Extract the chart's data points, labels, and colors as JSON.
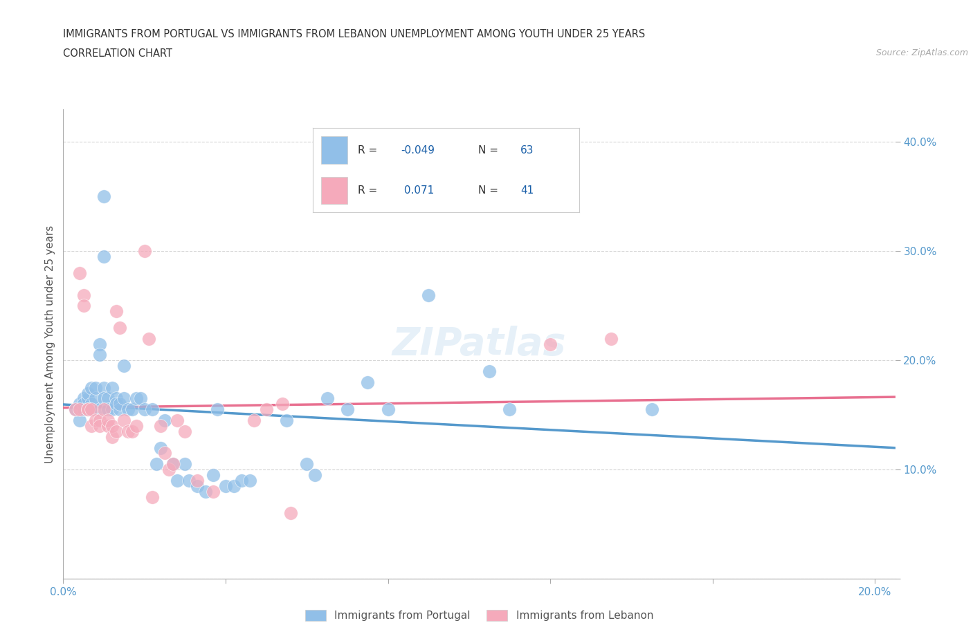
{
  "title_line1": "IMMIGRANTS FROM PORTUGAL VS IMMIGRANTS FROM LEBANON UNEMPLOYMENT AMONG YOUTH UNDER 25 YEARS",
  "title_line2": "CORRELATION CHART",
  "source_text": "Source: ZipAtlas.com",
  "ylabel": "Unemployment Among Youth under 25 years",
  "xlim": [
    0.0,
    0.205
  ],
  "ylim": [
    0.0,
    0.43
  ],
  "xticks": [
    0.0,
    0.04,
    0.08,
    0.12,
    0.16,
    0.2
  ],
  "xtick_labels": [
    "0.0%",
    "",
    "",
    "",
    "",
    "20.0%"
  ],
  "yticks": [
    0.0,
    0.1,
    0.2,
    0.3,
    0.4
  ],
  "ytick_labels_right": [
    "",
    "10.0%",
    "20.0%",
    "30.0%",
    "40.0%"
  ],
  "grid_color": "#cccccc",
  "background_color": "#ffffff",
  "portugal_color": "#91bfe8",
  "lebanon_color": "#f5aabb",
  "portugal_line_color": "#5599cc",
  "lebanon_line_color": "#e87090",
  "portugal_R": -0.049,
  "portugal_N": 63,
  "lebanon_R": 0.071,
  "lebanon_N": 41,
  "legend_text_color": "#1a5fa8",
  "legend_label_color": "#333333",
  "portugal_scatter": [
    [
      0.003,
      0.155
    ],
    [
      0.004,
      0.16
    ],
    [
      0.004,
      0.145
    ],
    [
      0.005,
      0.155
    ],
    [
      0.005,
      0.165
    ],
    [
      0.005,
      0.16
    ],
    [
      0.006,
      0.165
    ],
    [
      0.006,
      0.155
    ],
    [
      0.006,
      0.17
    ],
    [
      0.007,
      0.155
    ],
    [
      0.007,
      0.16
    ],
    [
      0.007,
      0.175
    ],
    [
      0.008,
      0.165
    ],
    [
      0.008,
      0.175
    ],
    [
      0.009,
      0.155
    ],
    [
      0.009,
      0.215
    ],
    [
      0.009,
      0.205
    ],
    [
      0.01,
      0.175
    ],
    [
      0.01,
      0.165
    ],
    [
      0.01,
      0.35
    ],
    [
      0.01,
      0.295
    ],
    [
      0.011,
      0.165
    ],
    [
      0.011,
      0.155
    ],
    [
      0.012,
      0.155
    ],
    [
      0.012,
      0.175
    ],
    [
      0.013,
      0.165
    ],
    [
      0.013,
      0.16
    ],
    [
      0.014,
      0.155
    ],
    [
      0.014,
      0.16
    ],
    [
      0.015,
      0.195
    ],
    [
      0.015,
      0.165
    ],
    [
      0.016,
      0.155
    ],
    [
      0.017,
      0.155
    ],
    [
      0.018,
      0.165
    ],
    [
      0.019,
      0.165
    ],
    [
      0.02,
      0.155
    ],
    [
      0.022,
      0.155
    ],
    [
      0.023,
      0.105
    ],
    [
      0.024,
      0.12
    ],
    [
      0.025,
      0.145
    ],
    [
      0.027,
      0.105
    ],
    [
      0.028,
      0.09
    ],
    [
      0.03,
      0.105
    ],
    [
      0.031,
      0.09
    ],
    [
      0.033,
      0.085
    ],
    [
      0.035,
      0.08
    ],
    [
      0.037,
      0.095
    ],
    [
      0.038,
      0.155
    ],
    [
      0.04,
      0.085
    ],
    [
      0.042,
      0.085
    ],
    [
      0.044,
      0.09
    ],
    [
      0.046,
      0.09
    ],
    [
      0.055,
      0.145
    ],
    [
      0.06,
      0.105
    ],
    [
      0.062,
      0.095
    ],
    [
      0.065,
      0.165
    ],
    [
      0.07,
      0.155
    ],
    [
      0.075,
      0.18
    ],
    [
      0.08,
      0.155
    ],
    [
      0.09,
      0.26
    ],
    [
      0.105,
      0.19
    ],
    [
      0.11,
      0.155
    ],
    [
      0.145,
      0.155
    ]
  ],
  "lebanon_scatter": [
    [
      0.003,
      0.155
    ],
    [
      0.004,
      0.28
    ],
    [
      0.004,
      0.155
    ],
    [
      0.005,
      0.26
    ],
    [
      0.005,
      0.25
    ],
    [
      0.006,
      0.155
    ],
    [
      0.006,
      0.155
    ],
    [
      0.007,
      0.155
    ],
    [
      0.007,
      0.14
    ],
    [
      0.008,
      0.145
    ],
    [
      0.009,
      0.145
    ],
    [
      0.009,
      0.14
    ],
    [
      0.01,
      0.155
    ],
    [
      0.011,
      0.14
    ],
    [
      0.011,
      0.145
    ],
    [
      0.012,
      0.13
    ],
    [
      0.012,
      0.14
    ],
    [
      0.013,
      0.135
    ],
    [
      0.013,
      0.245
    ],
    [
      0.014,
      0.23
    ],
    [
      0.015,
      0.145
    ],
    [
      0.016,
      0.135
    ],
    [
      0.017,
      0.135
    ],
    [
      0.018,
      0.14
    ],
    [
      0.02,
      0.3
    ],
    [
      0.021,
      0.22
    ],
    [
      0.022,
      0.075
    ],
    [
      0.024,
      0.14
    ],
    [
      0.025,
      0.115
    ],
    [
      0.026,
      0.1
    ],
    [
      0.027,
      0.105
    ],
    [
      0.028,
      0.145
    ],
    [
      0.03,
      0.135
    ],
    [
      0.033,
      0.09
    ],
    [
      0.037,
      0.08
    ],
    [
      0.047,
      0.145
    ],
    [
      0.05,
      0.155
    ],
    [
      0.054,
      0.16
    ],
    [
      0.056,
      0.06
    ],
    [
      0.12,
      0.215
    ],
    [
      0.135,
      0.22
    ]
  ]
}
